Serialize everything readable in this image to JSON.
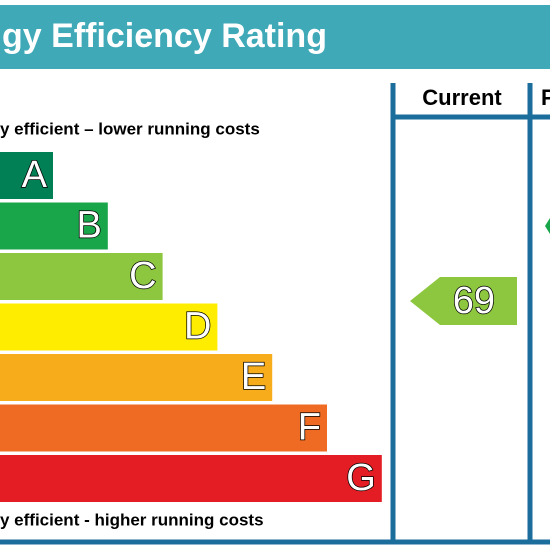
{
  "header": {
    "title": "gy Efficiency Rating"
  },
  "columns": [
    "Current",
    "P"
  ],
  "top_note": "y efficient – lower running costs",
  "bottom_note": "y efficient - higher running costs",
  "bands": [
    {
      "letter": "A",
      "color": "#008054"
    },
    {
      "letter": "B",
      "color": "#19a54a"
    },
    {
      "letter": "C",
      "color": "#8dc63f"
    },
    {
      "letter": "D",
      "color": "#ffed00"
    },
    {
      "letter": "E",
      "color": "#f7ac1b"
    },
    {
      "letter": "F",
      "color": "#ef6b24"
    },
    {
      "letter": "G",
      "color": "#e31d23"
    }
  ],
  "current": {
    "value": 69,
    "color": "#8dc63f"
  },
  "potential": {
    "color": "#19a54a"
  }
}
